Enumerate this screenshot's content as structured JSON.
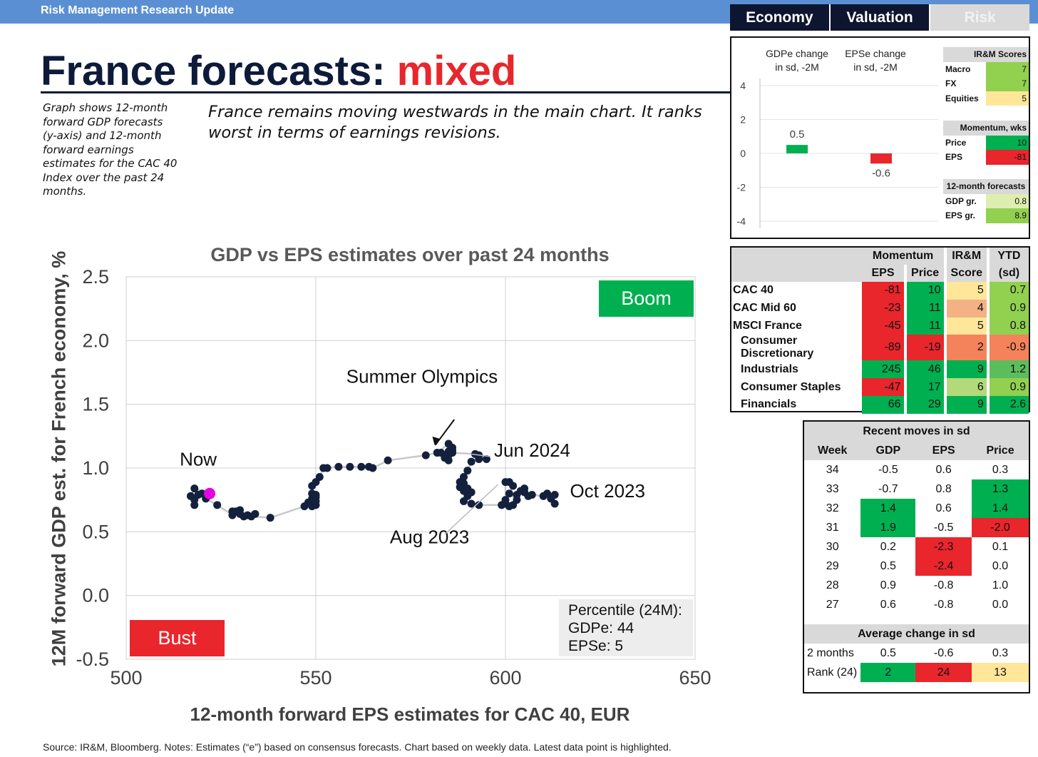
{
  "header": {
    "bar_title": "Risk Management Research Update"
  },
  "tabs": [
    {
      "label": "Economy",
      "active": false
    },
    {
      "label": "Valuation",
      "active": false
    },
    {
      "label": "Risk",
      "active": true
    }
  ],
  "title": {
    "main": "France forecasts:",
    "accent": "mixed"
  },
  "notes": {
    "side": "Graph shows 12-month forward GDP forecasts (y-axis) and 12-month forward earnings estimates for the CAC 40 Index over the past 24 months.",
    "main": "France remains moving westwards in the main chart. It ranks worst in terms of earnings revisions."
  },
  "colors": {
    "navy": "#0d1a3a",
    "red": "#e8262c",
    "green": "#00b050",
    "light_green": "#92d050",
    "yellow": "#ffe699",
    "orange": "#f4b183",
    "gray": "#d9d9d9",
    "dot": "#14213d",
    "highlight": "#e600e6"
  },
  "chart_data": [
    {
      "type": "scatter",
      "title": "GDP vs EPS  estimates over past 24 months",
      "xlabel": "12-month forward EPS estimates for CAC 40, EUR",
      "ylabel": "12M forward GDP est. for French economy, %",
      "xlim": [
        500,
        650
      ],
      "ylim": [
        -0.5,
        2.5
      ],
      "x_ticks": [
        "500",
        "550",
        "600",
        "650"
      ],
      "y_ticks": [
        "2.5",
        "2.0",
        "1.5",
        "1.0",
        "0.5",
        "0.0",
        "-0.5"
      ],
      "grid": true,
      "points": [
        [
          613,
          0.72
        ],
        [
          612,
          0.76
        ],
        [
          613,
          0.79
        ],
        [
          611,
          0.8
        ],
        [
          610,
          0.78
        ],
        [
          607,
          0.79
        ],
        [
          606,
          0.78
        ],
        [
          605,
          0.81
        ],
        [
          605,
          0.84
        ],
        [
          604,
          0.82
        ],
        [
          603,
          0.79
        ],
        [
          603,
          0.75
        ],
        [
          601,
          0.8
        ],
        [
          602,
          0.86
        ],
        [
          601,
          0.89
        ],
        [
          600,
          0.89
        ],
        [
          600,
          0.75
        ],
        [
          600,
          0.72
        ],
        [
          602,
          0.71
        ],
        [
          601,
          0.7
        ],
        [
          599,
          0.71
        ],
        [
          593,
          0.71
        ],
        [
          591,
          0.72
        ],
        [
          589,
          0.74
        ],
        [
          590,
          0.78
        ],
        [
          589,
          0.82
        ],
        [
          591,
          0.81
        ],
        [
          590,
          0.84
        ],
        [
          588,
          0.85
        ],
        [
          589,
          0.88
        ],
        [
          588,
          0.89
        ],
        [
          589,
          0.93
        ],
        [
          590,
          0.98
        ],
        [
          591,
          1.05
        ],
        [
          593,
          1.07
        ],
        [
          595,
          1.07
        ],
        [
          593,
          1.1
        ],
        [
          592,
          1.11
        ],
        [
          586,
          1.12
        ],
        [
          586,
          1.14
        ],
        [
          585,
          1.13
        ],
        [
          584,
          1.09
        ],
        [
          583,
          1.12
        ],
        [
          584,
          1.08
        ],
        [
          585,
          1.06
        ],
        [
          585,
          1.1
        ],
        [
          586,
          1.16
        ],
        [
          585,
          1.19
        ],
        [
          582,
          1.12
        ],
        [
          579,
          1.1
        ],
        [
          569,
          1.06
        ],
        [
          565,
          1.0
        ],
        [
          564,
          1.01
        ],
        [
          562,
          1.01
        ],
        [
          559,
          1.01
        ],
        [
          556,
          1.01
        ],
        [
          553,
          1.0
        ],
        [
          552,
          1.0
        ],
        [
          551,
          0.93
        ],
        [
          550,
          0.89
        ],
        [
          549,
          0.86
        ],
        [
          549,
          0.8
        ],
        [
          550,
          0.79
        ],
        [
          550,
          0.77
        ],
        [
          549,
          0.76
        ],
        [
          548,
          0.73
        ],
        [
          549,
          0.71
        ],
        [
          550,
          0.74
        ],
        [
          550,
          0.71
        ],
        [
          549,
          0.7
        ],
        [
          547,
          0.7
        ],
        [
          538,
          0.61
        ],
        [
          533,
          0.62
        ],
        [
          534,
          0.64
        ],
        [
          532,
          0.63
        ],
        [
          531,
          0.62
        ],
        [
          530,
          0.64
        ],
        [
          530,
          0.67
        ],
        [
          529,
          0.66
        ],
        [
          528,
          0.66
        ],
        [
          528,
          0.63
        ],
        [
          524,
          0.71
        ],
        [
          521,
          0.76
        ],
        [
          520,
          0.8
        ],
        [
          519,
          0.79
        ],
        [
          518,
          0.75
        ],
        [
          518,
          0.71
        ],
        [
          517,
          0.78
        ],
        [
          518,
          0.84
        ],
        [
          522,
          0.8
        ]
      ],
      "latest_point": [
        522,
        0.8
      ],
      "annotations": [
        {
          "text": "Summer Olympics",
          "x": 578,
          "y": 1.67
        },
        {
          "text": "Jun 2024",
          "x": 597,
          "y": 1.09
        },
        {
          "text": "Aug 2023",
          "x": 580,
          "y": 0.41
        },
        {
          "text": "Oct 2023",
          "x": 617,
          "y": 0.77
        },
        {
          "text": "Now",
          "x": 519,
          "y": 1.02
        }
      ],
      "quadrant_labels": {
        "boom": "Boom",
        "bust": "Bust"
      },
      "percentile_box": {
        "title": "Percentile (24M):",
        "gdpe": "GDPe:  44",
        "epse": "EPSe:  5"
      }
    },
    {
      "type": "bar",
      "categories": [
        "GDPe change\nin sd, -2M",
        "EPSe change\nin sd, -2M"
      ],
      "values": [
        0.5,
        -0.6
      ],
      "value_labels": [
        "0.5",
        "-0.6"
      ],
      "ylim": [
        -4,
        4
      ],
      "y_ticks": [
        "4",
        "2",
        "0",
        "-2",
        "-4"
      ]
    }
  ],
  "scores": {
    "irm": {
      "header": "IR&M Scores",
      "rows": [
        {
          "label": "Macro",
          "value": "7",
          "color": "#92d050"
        },
        {
          "label": "FX",
          "value": "7",
          "color": "#92d050"
        },
        {
          "label": "Equities",
          "value": "5",
          "color": "#ffe699"
        }
      ]
    },
    "momentum": {
      "header": "Momentum, wks",
      "rows": [
        {
          "label": "Price",
          "value": "10",
          "color": "#00b050"
        },
        {
          "label": "EPS",
          "value": "-81",
          "color": "#e8262c"
        }
      ]
    },
    "forecasts": {
      "header": "12-month forecasts",
      "rows": [
        {
          "label": "GDP gr.",
          "value": "0.8",
          "color": "#ddeeb0"
        },
        {
          "label": "EPS gr.",
          "value": "8.9",
          "color": "#92d050"
        }
      ]
    }
  },
  "index_table": {
    "group_headers": [
      "Momentum",
      "IR&M",
      "YTD"
    ],
    "sub_headers": [
      "EPS",
      "Price",
      "Score",
      "(sd)"
    ],
    "rows": [
      {
        "name": "CAC 40",
        "sub": false,
        "cells": [
          {
            "v": "-81",
            "c": "#e8262c"
          },
          {
            "v": "10",
            "c": "#00b050"
          },
          {
            "v": "5",
            "c": "#ffe699"
          },
          {
            "v": "0.7",
            "c": "#92d050"
          }
        ]
      },
      {
        "name": "CAC Mid 60",
        "sub": false,
        "cells": [
          {
            "v": "-23",
            "c": "#e8262c"
          },
          {
            "v": "11",
            "c": "#00b050"
          },
          {
            "v": "4",
            "c": "#f4b183"
          },
          {
            "v": "0.9",
            "c": "#92d050"
          }
        ]
      },
      {
        "name": "MSCI France",
        "sub": false,
        "cells": [
          {
            "v": "-45",
            "c": "#e8262c"
          },
          {
            "v": "11",
            "c": "#00b050"
          },
          {
            "v": "5",
            "c": "#ffe699"
          },
          {
            "v": "0.8",
            "c": "#92d050"
          }
        ]
      },
      {
        "name": "Consumer Discretionary",
        "sub": true,
        "cells": [
          {
            "v": "-89",
            "c": "#e8262c"
          },
          {
            "v": "-19",
            "c": "#e8262c"
          },
          {
            "v": "2",
            "c": "#f4825a"
          },
          {
            "v": "-0.9",
            "c": "#f4825a"
          }
        ]
      },
      {
        "name": "Industrials",
        "sub": true,
        "cells": [
          {
            "v": "245",
            "c": "#00b050"
          },
          {
            "v": "46",
            "c": "#00b050"
          },
          {
            "v": "9",
            "c": "#00b050"
          },
          {
            "v": "1.2",
            "c": "#5cbd5c"
          }
        ]
      },
      {
        "name": "Consumer Staples",
        "sub": true,
        "cells": [
          {
            "v": "-47",
            "c": "#e8262c"
          },
          {
            "v": "17",
            "c": "#00b050"
          },
          {
            "v": "6",
            "c": "#b4d97a"
          },
          {
            "v": "0.9",
            "c": "#92d050"
          }
        ]
      },
      {
        "name": "Financials",
        "sub": true,
        "cells": [
          {
            "v": "66",
            "c": "#00b050"
          },
          {
            "v": "29",
            "c": "#00b050"
          },
          {
            "v": "9",
            "c": "#00b050"
          },
          {
            "v": "2.6",
            "c": "#00b050"
          }
        ]
      }
    ]
  },
  "recent_moves": {
    "title": "Recent moves in sd",
    "headers": [
      "Week",
      "GDP",
      "EPS",
      "Price"
    ],
    "rows": [
      {
        "week": "34",
        "gdp": "-0.5",
        "eps": "0.6",
        "price": "0.3",
        "gdp_c": "",
        "eps_c": "",
        "price_c": ""
      },
      {
        "week": "33",
        "gdp": "-0.7",
        "eps": "0.8",
        "price": "1.3",
        "gdp_c": "",
        "eps_c": "",
        "price_c": "#00b050"
      },
      {
        "week": "32",
        "gdp": "1.4",
        "eps": "0.6",
        "price": "1.4",
        "gdp_c": "#00b050",
        "eps_c": "",
        "price_c": "#00b050"
      },
      {
        "week": "31",
        "gdp": "1.9",
        "eps": "-0.5",
        "price": "-2.0",
        "gdp_c": "#00b050",
        "eps_c": "",
        "price_c": "#e8262c"
      },
      {
        "week": "30",
        "gdp": "0.2",
        "eps": "-2.3",
        "price": "0.1",
        "gdp_c": "",
        "eps_c": "#e8262c",
        "price_c": ""
      },
      {
        "week": "29",
        "gdp": "0.5",
        "eps": "-2.4",
        "price": "0.0",
        "gdp_c": "",
        "eps_c": "#e8262c",
        "price_c": ""
      },
      {
        "week": "28",
        "gdp": "0.9",
        "eps": "-0.8",
        "price": "1.0",
        "gdp_c": "",
        "eps_c": "",
        "price_c": ""
      },
      {
        "week": "27",
        "gdp": "0.6",
        "eps": "-0.8",
        "price": "0.0",
        "gdp_c": "",
        "eps_c": "",
        "price_c": ""
      }
    ],
    "avg_title": "Average change in sd",
    "avg_rows": [
      {
        "label": "2 months",
        "gdp": "0.5",
        "eps": "-0.6",
        "price": "0.3",
        "gdp_c": "",
        "eps_c": "",
        "price_c": ""
      },
      {
        "label": "Rank (24)",
        "gdp": "2",
        "eps": "24",
        "price": "13",
        "gdp_c": "#00b050",
        "eps_c": "#e8262c",
        "price_c": "#ffe699"
      }
    ]
  },
  "footer": {
    "source": "Source: IR&M, Bloomberg. Notes: Estimates (“e”) based on consensus forecasts. Chart based on weekly data. Latest data point is highlighted."
  }
}
